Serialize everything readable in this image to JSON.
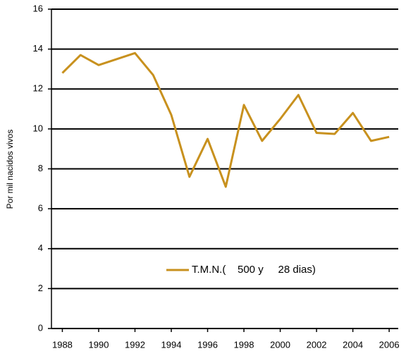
{
  "chart_data": {
    "type": "line",
    "y_label": "Por mil nacidos vivos",
    "x": [
      1988,
      1989,
      1990,
      1991,
      1992,
      1993,
      1994,
      1995,
      1996,
      1997,
      1998,
      1999,
      2000,
      2001,
      2002,
      2003,
      2004,
      2005,
      2006
    ],
    "series": [
      {
        "name": "T.M.N.(    500 y     28 dias)",
        "color": "#c8911e",
        "values": [
          12.8,
          13.7,
          13.2,
          13.5,
          13.8,
          12.7,
          10.7,
          7.6,
          9.5,
          7.1,
          11.2,
          9.4,
          10.5,
          11.7,
          9.8,
          9.75,
          10.8,
          9.4,
          9.6
        ]
      }
    ],
    "xlim": [
      1987.4,
      2006.5
    ],
    "xticks": [
      1988,
      1990,
      1992,
      1994,
      1996,
      1998,
      2000,
      2002,
      2004,
      2006
    ],
    "ylim": [
      0,
      16
    ],
    "yticks": [
      0,
      2,
      4,
      6,
      8,
      10,
      12,
      14,
      16
    ],
    "grid": true
  }
}
